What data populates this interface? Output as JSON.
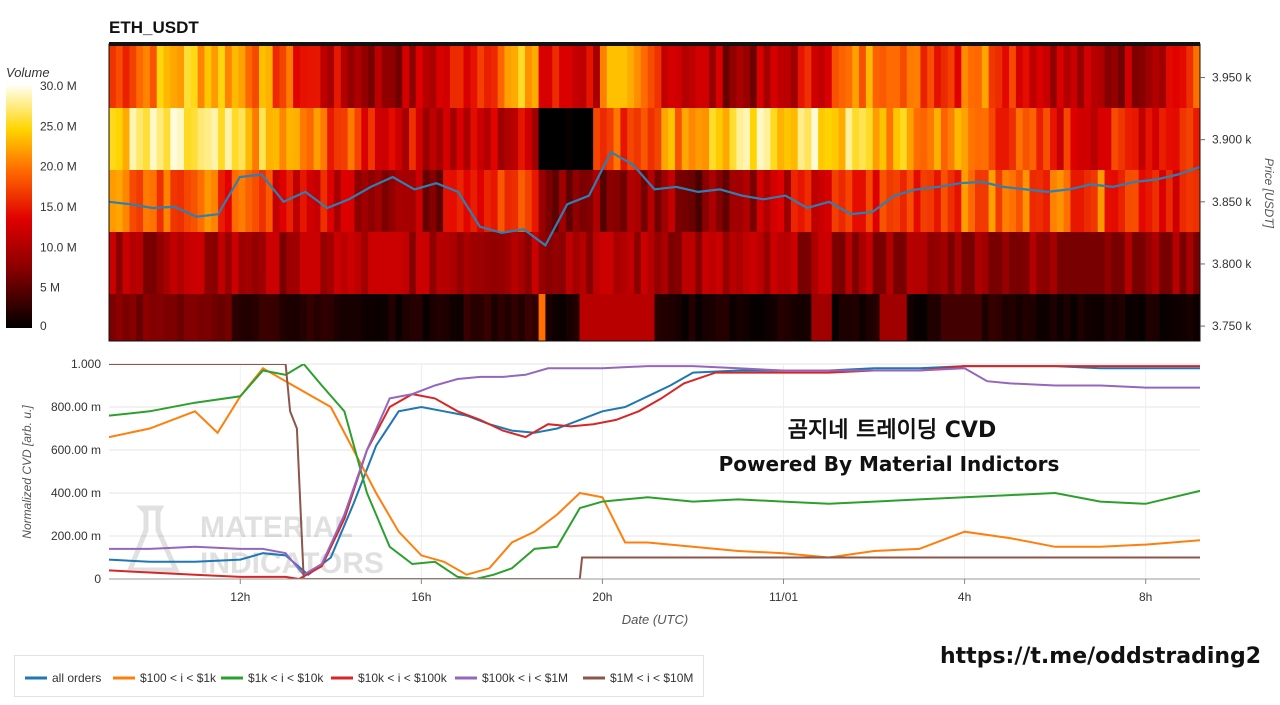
{
  "title": "ETH_USDT",
  "overlay": {
    "line1": "곰지네 트레이딩 CVD",
    "line2": "Powered By Material Indictors"
  },
  "watermark": "MATERIAL INDICATORS",
  "footer_link": "https://t.me/oddstrading2",
  "colors": {
    "all_orders": "#1f77b4",
    "s100_1k": "#ff7f0e",
    "s1k_10k": "#2ca02c",
    "s10k_100k": "#d62728",
    "s100k_1m": "#9467bd",
    "s1m_10m": "#8c564b",
    "price_line": "#2f7fb3"
  },
  "chart_data": [
    {
      "type": "heatmap",
      "title": "ETH_USDT",
      "colorbar": {
        "label": "Volume",
        "ticks": [
          "0",
          "5 M",
          "10.0 M",
          "15.0 M",
          "20.0 M",
          "25.0 M",
          "30.0 M"
        ],
        "range": [
          0,
          33
        ]
      },
      "y_axis": {
        "label": "Price [USDT]",
        "ticks": [
          "3.750 k",
          "3.800 k",
          "3.850 k",
          "3.900 k",
          "3.950 k"
        ],
        "range": [
          3738,
          3977
        ]
      },
      "price_bands": [
        3950,
        3900,
        3850,
        3800,
        3750
      ],
      "band_profile_hot_zones": {
        "band0": [
          [
            0.4,
            0.6
          ],
          [
            0.55,
            0.75
          ],
          [
            0.35,
            0.55
          ]
        ],
        "band1": [
          [
            0.1,
            0.25
          ],
          [
            0.45,
            0.65
          ],
          [
            0.75,
            0.95
          ]
        ],
        "band2": [
          [
            0.0,
            0.2
          ],
          [
            0.3,
            0.45
          ],
          [
            0.68,
            0.85
          ]
        ],
        "band3": [],
        "band4": []
      },
      "price_series": {
        "x": [
          0.0,
          0.02,
          0.04,
          0.06,
          0.08,
          0.1,
          0.12,
          0.14,
          0.16,
          0.18,
          0.2,
          0.22,
          0.24,
          0.26,
          0.28,
          0.3,
          0.32,
          0.34,
          0.36,
          0.38,
          0.4,
          0.42,
          0.44,
          0.46,
          0.48,
          0.5,
          0.52,
          0.54,
          0.56,
          0.58,
          0.6,
          0.62,
          0.64,
          0.66,
          0.68,
          0.7,
          0.72,
          0.74,
          0.76,
          0.78,
          0.8,
          0.82,
          0.84,
          0.86,
          0.88,
          0.9,
          0.92,
          0.94,
          0.96,
          0.98,
          1.0
        ],
        "y": [
          3850,
          3848,
          3845,
          3846,
          3838,
          3840,
          3870,
          3872,
          3850,
          3858,
          3845,
          3852,
          3862,
          3870,
          3860,
          3865,
          3858,
          3830,
          3825,
          3828,
          3815,
          3848,
          3855,
          3890,
          3880,
          3860,
          3862,
          3858,
          3860,
          3855,
          3852,
          3855,
          3845,
          3850,
          3840,
          3842,
          3855,
          3860,
          3862,
          3865,
          3866,
          3862,
          3860,
          3858,
          3860,
          3864,
          3862,
          3866,
          3868,
          3872,
          3878
        ]
      }
    },
    {
      "type": "line",
      "xlabel": "Date (UTC)",
      "ylabel": "Normalized CVD [arb. u.]",
      "ylim": [
        0,
        1
      ],
      "y_ticks": [
        "0",
        "200.00 m",
        "400.00 m",
        "600.00 m",
        "800.00 m",
        "1.000"
      ],
      "x_ticks": [
        "12h",
        "16h",
        "20h",
        "11/01",
        "4h",
        "8h"
      ],
      "x_tick_hours": [
        12,
        16,
        20,
        24,
        28,
        32
      ],
      "xlim_hours": [
        9.1,
        33.2
      ],
      "series": [
        {
          "name": "all orders",
          "x": [
            9.1,
            10,
            11,
            12,
            12.5,
            13,
            13.5,
            14,
            14.5,
            15,
            15.5,
            16,
            16.5,
            17,
            17.5,
            18,
            18.5,
            19,
            19.5,
            20,
            20.5,
            21,
            21.5,
            22,
            23,
            24,
            25,
            26,
            27,
            28,
            29,
            30,
            31,
            32,
            33.2
          ],
          "y": [
            0.09,
            0.08,
            0.08,
            0.09,
            0.12,
            0.11,
            0.02,
            0.1,
            0.35,
            0.62,
            0.78,
            0.8,
            0.78,
            0.76,
            0.72,
            0.69,
            0.68,
            0.7,
            0.74,
            0.78,
            0.8,
            0.85,
            0.9,
            0.96,
            0.97,
            0.97,
            0.97,
            0.98,
            0.98,
            0.99,
            0.99,
            0.99,
            0.98,
            0.98,
            0.98
          ]
        },
        {
          "name": "$100 < i < $1k",
          "x": [
            9.1,
            10,
            11,
            11.5,
            12,
            12.5,
            13,
            13.5,
            14,
            14.5,
            15,
            15.5,
            16,
            16.5,
            17,
            17.5,
            18,
            18.5,
            19,
            19.5,
            20,
            20.5,
            21,
            22,
            23,
            24,
            25,
            26,
            27,
            28,
            29,
            30,
            31,
            32,
            33.2
          ],
          "y": [
            0.66,
            0.7,
            0.78,
            0.68,
            0.85,
            0.98,
            0.92,
            0.86,
            0.8,
            0.6,
            0.4,
            0.22,
            0.11,
            0.08,
            0.02,
            0.05,
            0.17,
            0.22,
            0.3,
            0.4,
            0.38,
            0.17,
            0.17,
            0.15,
            0.13,
            0.12,
            0.1,
            0.13,
            0.14,
            0.22,
            0.19,
            0.15,
            0.15,
            0.16,
            0.18
          ]
        },
        {
          "name": "$1k < i < $10k",
          "x": [
            9.1,
            10,
            11,
            12,
            12.5,
            13,
            13.4,
            13.8,
            14.3,
            14.8,
            15.3,
            15.8,
            16.3,
            16.8,
            17.2,
            17.6,
            18,
            18.5,
            19,
            19.5,
            20,
            20.5,
            21,
            22,
            23,
            24,
            25,
            26,
            27,
            28,
            29,
            30,
            31,
            32,
            33.2
          ],
          "y": [
            0.76,
            0.78,
            0.82,
            0.85,
            0.97,
            0.95,
            1.0,
            0.9,
            0.78,
            0.4,
            0.15,
            0.07,
            0.08,
            0.01,
            0.0,
            0.02,
            0.05,
            0.14,
            0.15,
            0.33,
            0.36,
            0.37,
            0.38,
            0.36,
            0.37,
            0.36,
            0.35,
            0.36,
            0.37,
            0.38,
            0.39,
            0.4,
            0.36,
            0.35,
            0.41
          ]
        },
        {
          "name": "$10k < i < $100k",
          "x": [
            9.1,
            10,
            11,
            12,
            12.5,
            13,
            13.3,
            13.8,
            14.3,
            14.8,
            15.3,
            15.8,
            16.3,
            16.8,
            17.3,
            17.8,
            18.3,
            18.8,
            19.3,
            19.8,
            20.3,
            20.8,
            21.3,
            21.8,
            22.5,
            24,
            25,
            26,
            27,
            28,
            29,
            30,
            31,
            32,
            33.2
          ],
          "y": [
            0.04,
            0.03,
            0.02,
            0.01,
            0.01,
            0.01,
            0.0,
            0.06,
            0.28,
            0.6,
            0.8,
            0.86,
            0.84,
            0.78,
            0.74,
            0.69,
            0.66,
            0.72,
            0.71,
            0.72,
            0.74,
            0.78,
            0.84,
            0.91,
            0.96,
            0.96,
            0.96,
            0.97,
            0.97,
            0.99,
            0.99,
            0.99,
            0.99,
            0.99,
            0.99
          ]
        },
        {
          "name": "$100k < i < $1M",
          "x": [
            9.1,
            10,
            11,
            12,
            12.5,
            13,
            13.4,
            13.8,
            14.3,
            14.8,
            15.3,
            15.8,
            16.3,
            16.8,
            17.3,
            17.8,
            18.3,
            18.8,
            19.3,
            20,
            21,
            22,
            23,
            24,
            25,
            26,
            27,
            28,
            28.5,
            29,
            30,
            31,
            32,
            33.2
          ],
          "y": [
            0.14,
            0.14,
            0.15,
            0.14,
            0.14,
            0.12,
            0.02,
            0.07,
            0.3,
            0.6,
            0.84,
            0.86,
            0.9,
            0.93,
            0.94,
            0.94,
            0.95,
            0.98,
            0.98,
            0.98,
            0.99,
            0.99,
            0.98,
            0.97,
            0.97,
            0.97,
            0.97,
            0.98,
            0.92,
            0.91,
            0.9,
            0.9,
            0.89,
            0.89
          ]
        },
        {
          "name": "$1M < i < $10M",
          "x": [
            9.1,
            10,
            11,
            12,
            13,
            13.1,
            13.25,
            13.4,
            14,
            15,
            16,
            17,
            18,
            19,
            19.5,
            19.55,
            20,
            22,
            24,
            26,
            28,
            30,
            32,
            33.2
          ],
          "y": [
            1.0,
            1.0,
            1.0,
            1.0,
            1.0,
            0.78,
            0.7,
            0.0,
            0.0,
            0.0,
            0.0,
            0.0,
            0.0,
            0.0,
            0.0,
            0.1,
            0.1,
            0.1,
            0.1,
            0.1,
            0.1,
            0.1,
            0.1,
            0.1
          ]
        }
      ],
      "legend_placement": "bottom"
    }
  ]
}
